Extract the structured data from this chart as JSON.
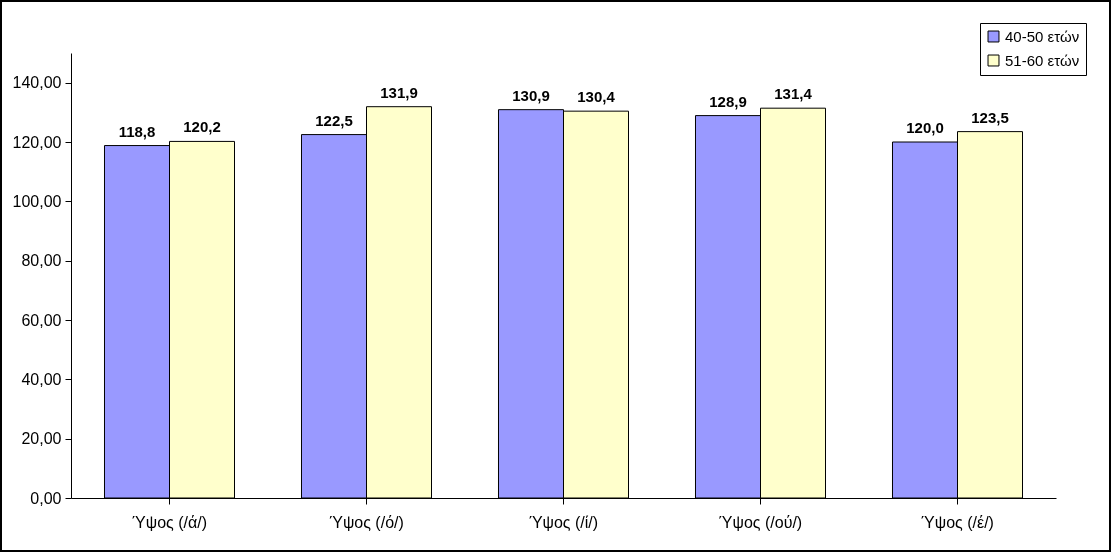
{
  "chart_data": {
    "type": "bar",
    "categories": [
      "Ύψος (/ά/)",
      "Ύψος (/ό/)",
      "Ύψος (/ί/)",
      "Ύψος (/ού/)",
      "Ύψος (/έ/)"
    ],
    "series": [
      {
        "name": "40-50 ετών",
        "color": "#9999ff",
        "values": [
          118.8,
          122.5,
          130.9,
          128.9,
          120.0
        ],
        "value_labels": [
          "118,8",
          "122,5",
          "130,9",
          "128,9",
          "120,0"
        ]
      },
      {
        "name": "51-60 ετών",
        "color": "#ffffcc",
        "values": [
          120.2,
          131.9,
          130.4,
          131.4,
          123.5
        ],
        "value_labels": [
          "120,2",
          "131,9",
          "130,4",
          "131,4",
          "123,5"
        ]
      }
    ],
    "ylim": [
      0,
      150
    ],
    "yticks": [
      {
        "value": 0,
        "label": "0,00"
      },
      {
        "value": 20,
        "label": "20,00"
      },
      {
        "value": 40,
        "label": "40,00"
      },
      {
        "value": 60,
        "label": "60,00"
      },
      {
        "value": 80,
        "label": "80,00"
      },
      {
        "value": 100,
        "label": "100,00"
      },
      {
        "value": 120,
        "label": "120,00"
      },
      {
        "value": 140,
        "label": "140,00"
      }
    ],
    "grid": false,
    "legend": "top right"
  }
}
